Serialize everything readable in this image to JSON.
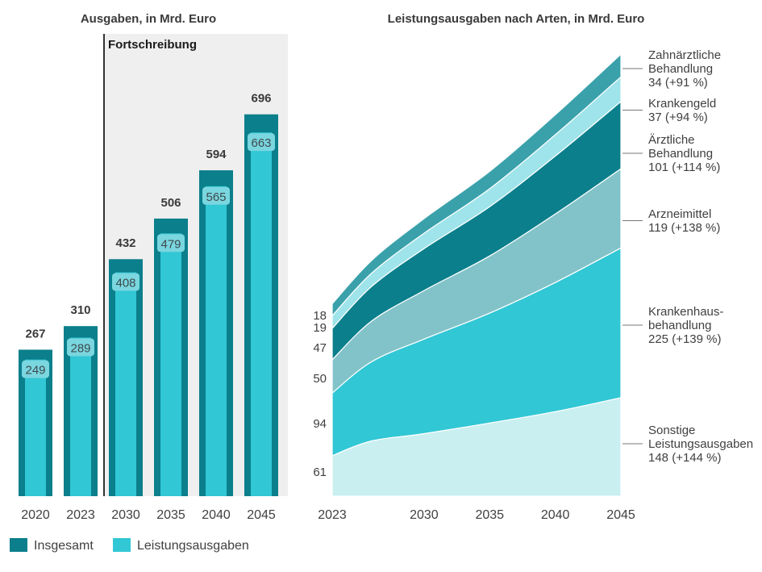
{
  "colors": {
    "insgesamt": "#0b7f8c",
    "leistungsausgaben": "#31c7d5",
    "inner_label_bg": "#7ad6df",
    "projection_bg": "#efefef",
    "divider": "#333333",
    "area_sonstige": "#c9eff1",
    "area_krankenhaus": "#31c7d5",
    "area_arznei": "#82c3c9",
    "area_aerztlich": "#0b7f8c",
    "area_kranken": "#9ee4ea",
    "area_zahn": "#3aa1ab"
  },
  "chart_data": [
    {
      "type": "bar",
      "title": "Ausgaben, in Mrd. Euro",
      "annotation": "Fortschreibung",
      "categories": [
        "2020",
        "2023",
        "2030",
        "2035",
        "2040",
        "2045"
      ],
      "series": [
        {
          "name": "Insgesamt",
          "values": [
            267,
            310,
            432,
            506,
            594,
            696
          ]
        },
        {
          "name": "Leistungsausgaben",
          "values": [
            249,
            289,
            408,
            479,
            565,
            663
          ]
        }
      ],
      "ylim": [
        0,
        800
      ]
    },
    {
      "type": "area",
      "stacked": true,
      "title": "Leistungsausgaben nach Arten, in Mrd. Euro",
      "x": [
        2023,
        2026,
        2030,
        2035,
        2040,
        2045
      ],
      "xticks": [
        "2023",
        "2030",
        "2035",
        "2040",
        "2045"
      ],
      "ylim": [
        0,
        800
      ],
      "series": [
        {
          "name": "Sonstige Leistungsausgaben",
          "start_label": "61",
          "end_lines": [
            "Sonstige",
            "Leistungsausgaben",
            "148 (+144 %)"
          ],
          "values": [
            61,
            83,
            94,
            110,
            127,
            148
          ]
        },
        {
          "name": "Krankenhausbehandlung",
          "start_label": "94",
          "end_lines": [
            "Krankenhaus-",
            "behandlung",
            "225 (+139 %)"
          ],
          "values": [
            94,
            119,
            142,
            165,
            194,
            225
          ]
        },
        {
          "name": "Arzneimittel",
          "start_label": "50",
          "end_lines": [
            "Arzneimittel",
            "119 (+138 %)"
          ],
          "values": [
            50,
            61,
            73,
            86,
            103,
            119
          ]
        },
        {
          "name": "Ärztliche Behandlung",
          "start_label": "47",
          "end_lines": [
            "Ärztliche",
            "Behandlung",
            "101 (+114 %)"
          ],
          "values": [
            47,
            52,
            63,
            74,
            87,
            101
          ]
        },
        {
          "name": "Krankengeld",
          "start_label": "19",
          "end_lines": [
            "Krankengeld",
            "37 (+94 %)"
          ],
          "values": [
            19,
            20,
            23,
            27,
            32,
            37
          ]
        },
        {
          "name": "Zahnärztliche Behandlung",
          "start_label": "18",
          "end_lines": [
            "Zahnärztliche",
            "Behandlung",
            "34 (+91 %)"
          ],
          "values": [
            18,
            19,
            22,
            26,
            30,
            34
          ]
        }
      ]
    }
  ],
  "legend": [
    {
      "label": "Insgesamt",
      "color_key": "insgesamt"
    },
    {
      "label": "Leistungsausgaben",
      "color_key": "leistungsausgaben"
    }
  ]
}
